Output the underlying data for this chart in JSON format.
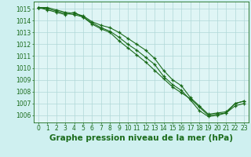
{
  "background_color": "#cff0f0",
  "plot_bg_color": "#dff5f5",
  "grid_color": "#b0d8d8",
  "line_color": "#1a6b1a",
  "xlabel": "Graphe pression niveau de la mer (hPa)",
  "ylim": [
    1005.4,
    1015.6
  ],
  "xlim": [
    -0.5,
    23.5
  ],
  "yticks": [
    1006,
    1007,
    1008,
    1009,
    1010,
    1011,
    1012,
    1013,
    1014,
    1015
  ],
  "xticks": [
    0,
    1,
    2,
    3,
    4,
    5,
    6,
    7,
    8,
    9,
    10,
    11,
    12,
    13,
    14,
    15,
    16,
    17,
    18,
    19,
    20,
    21,
    22,
    23
  ],
  "series1": [
    1015.1,
    1015.1,
    1014.9,
    1014.7,
    1014.6,
    1014.4,
    1013.9,
    1013.6,
    1013.4,
    1013.0,
    1012.5,
    1012.0,
    1011.5,
    1010.8,
    1009.8,
    1009.0,
    1008.5,
    1007.5,
    1006.8,
    1006.1,
    1006.2,
    1006.3,
    1007.0,
    1007.2
  ],
  "series2": [
    1015.1,
    1014.9,
    1014.7,
    1014.5,
    1014.7,
    1014.3,
    1013.8,
    1013.4,
    1013.1,
    1012.6,
    1012.0,
    1011.5,
    1010.9,
    1010.3,
    1009.3,
    1008.6,
    1008.1,
    1007.3,
    1006.4,
    1005.9,
    1006.0,
    1006.2,
    1006.8,
    1007.0
  ],
  "series3": [
    1015.1,
    1015.0,
    1014.8,
    1014.6,
    1014.5,
    1014.3,
    1013.7,
    1013.3,
    1013.0,
    1012.3,
    1011.7,
    1011.1,
    1010.5,
    1009.8,
    1009.1,
    1008.4,
    1007.9,
    1007.4,
    1006.7,
    1006.0,
    1006.1,
    1006.2,
    1007.0,
    1007.2
  ],
  "tick_fontsize": 5.5,
  "xlabel_fontsize": 7.5
}
